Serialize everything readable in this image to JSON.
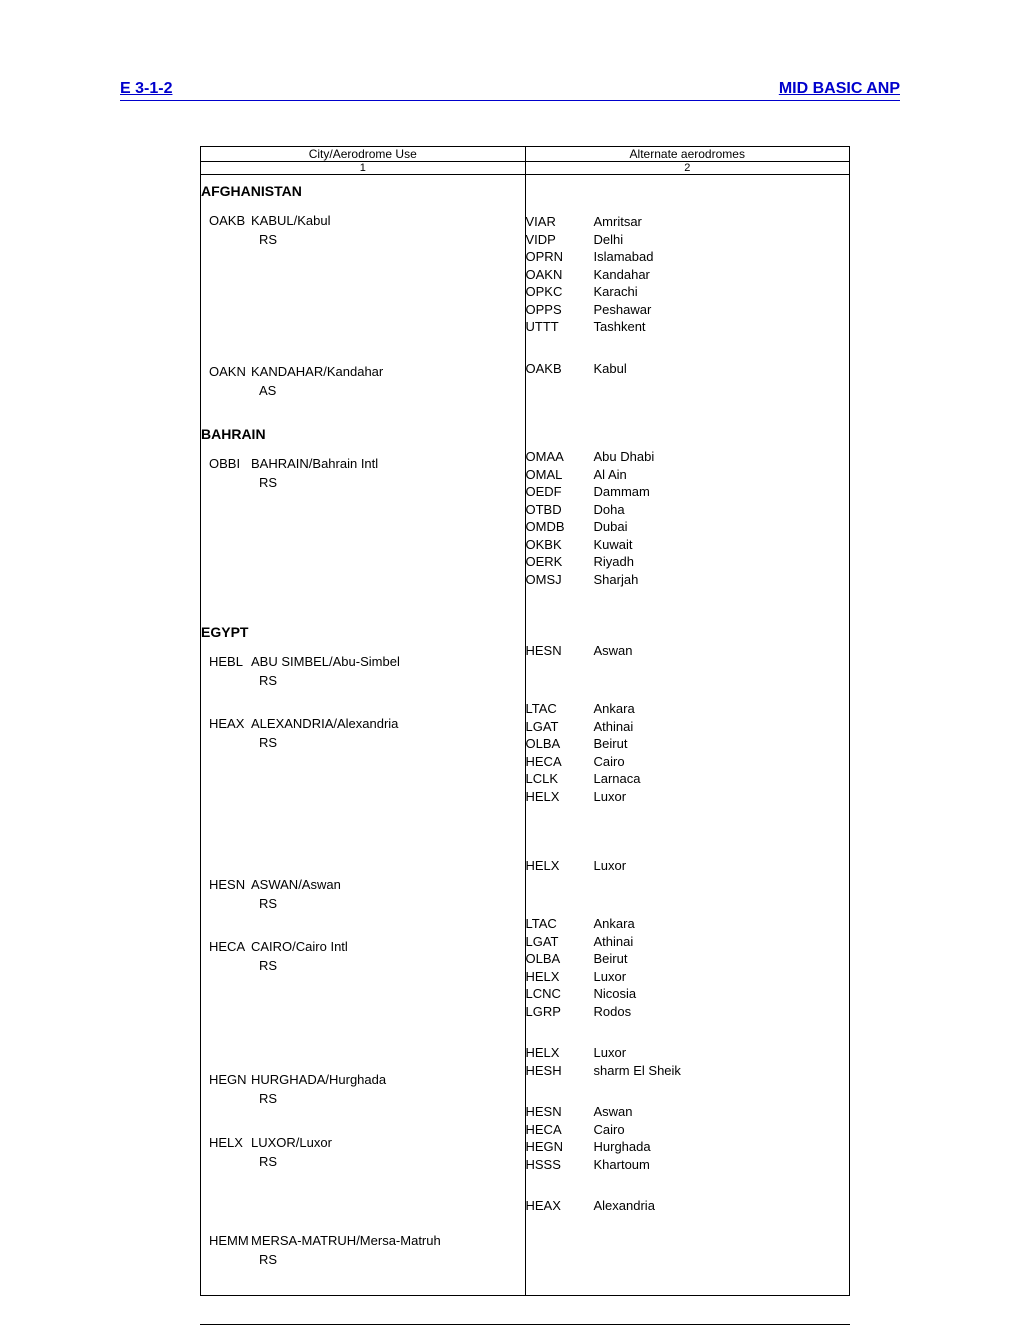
{
  "header": {
    "left": "E 3-1-2",
    "right": "MID BASIC ANP"
  },
  "columns": {
    "h1": "City/Aerodrome Use",
    "h2": "Alternate aerodromes",
    "n1": "1",
    "n2": "2"
  },
  "sections": [
    {
      "country": "AFGHANISTAN",
      "rows": [
        {
          "code": "OAKB",
          "name": "KABUL/Kabul",
          "use": "RS",
          "alts": [
            {
              "c": "VIAR",
              "n": "Amritsar"
            },
            {
              "c": "VIDP",
              "n": "Delhi"
            },
            {
              "c": "OPRN",
              "n": "Islamabad"
            },
            {
              "c": "OAKN",
              "n": "Kandahar"
            },
            {
              "c": "OPKC",
              "n": "Karachi"
            },
            {
              "c": "OPPS",
              "n": "Peshawar"
            },
            {
              "c": "UTTT",
              "n": "Tashkent"
            }
          ]
        },
        {
          "code": "OAKN",
          "name": "KANDAHAR/Kandahar",
          "use": "AS",
          "alts": [
            {
              "c": "OAKB",
              "n": "Kabul"
            }
          ]
        }
      ]
    },
    {
      "country": "BAHRAIN",
      "rows": [
        {
          "code": "OBBI",
          "name": "BAHRAIN/Bahrain Intl",
          "use": "RS",
          "alts": [
            {
              "c": "OMAA",
              "n": "Abu  Dhabi"
            },
            {
              "c": "OMAL",
              "n": "Al Ain"
            },
            {
              "c": "OEDF",
              "n": "Dammam"
            },
            {
              "c": "OTBD",
              "n": "Doha"
            },
            {
              "c": "OMDB",
              "n": "Dubai"
            },
            {
              "c": "OKBK",
              "n": "Kuwait"
            },
            {
              "c": "OERK",
              "n": "Riyadh"
            },
            {
              "c": "OMSJ",
              "n": "Sharjah"
            }
          ]
        }
      ]
    },
    {
      "country": "EGYPT",
      "rows": [
        {
          "code": "HEBL",
          "name": "ABU SIMBEL/Abu-Simbel",
          "use": "RS",
          "alts": [
            {
              "c": "HESN",
              "n": "Aswan"
            }
          ]
        },
        {
          "code": "HEAX",
          "name": "ALEXANDRIA/Alexandria",
          "use": "RS",
          "alts": [
            {
              "c": "LTAC",
              "n": "Ankara"
            },
            {
              "c": "LGAT",
              "n": "Athinai"
            },
            {
              "c": "OLBA",
              "n": "Beirut"
            },
            {
              "c": "HECA",
              "n": "Cairo"
            },
            {
              "c": "LCLK",
              "n": "Larnaca"
            },
            {
              "c": "HELX",
              "n": "Luxor"
            }
          ],
          "trailingGap": true
        },
        {
          "code": "HESN",
          "name": "ASWAN/Aswan",
          "use": "RS",
          "alts": [
            {
              "c": "HELX",
              "n": "Luxor"
            }
          ]
        },
        {
          "code": "HECA",
          "name": "CAIRO/Cairo Intl",
          "use": "RS",
          "alts": [
            {
              "c": "LTAC",
              "n": "Ankara"
            },
            {
              "c": "LGAT",
              "n": "Athinai"
            },
            {
              "c": "OLBA",
              "n": "Beirut"
            },
            {
              "c": "HELX",
              "n": "Luxor"
            },
            {
              "c": "LCNC",
              "n": "Nicosia"
            },
            {
              "c": "LGRP",
              "n": "Rodos"
            }
          ]
        },
        {
          "code": "HEGN",
          "name": "HURGHADA/Hurghada",
          "use": "RS",
          "alts": [
            {
              "c": "HELX",
              "n": "Luxor"
            },
            {
              "c": "HESH",
              "n": "sharm El Sheik"
            }
          ]
        },
        {
          "code": "HELX",
          "name": "LUXOR/Luxor",
          "use": "RS",
          "alts": [
            {
              "c": "HESN",
              "n": "Aswan"
            },
            {
              "c": "HECA",
              "n": "Cairo"
            },
            {
              "c": "HEGN",
              "n": "Hurghada"
            },
            {
              "c": "HSSS",
              "n": "Khartoum"
            }
          ]
        },
        {
          "code": "HEMM",
          "name": "MERSA-MATRUH/Mersa-Matruh",
          "use": "RS",
          "alts": [
            {
              "c": "HEAX",
              "n": "Alexandria"
            }
          ]
        }
      ]
    }
  ]
}
